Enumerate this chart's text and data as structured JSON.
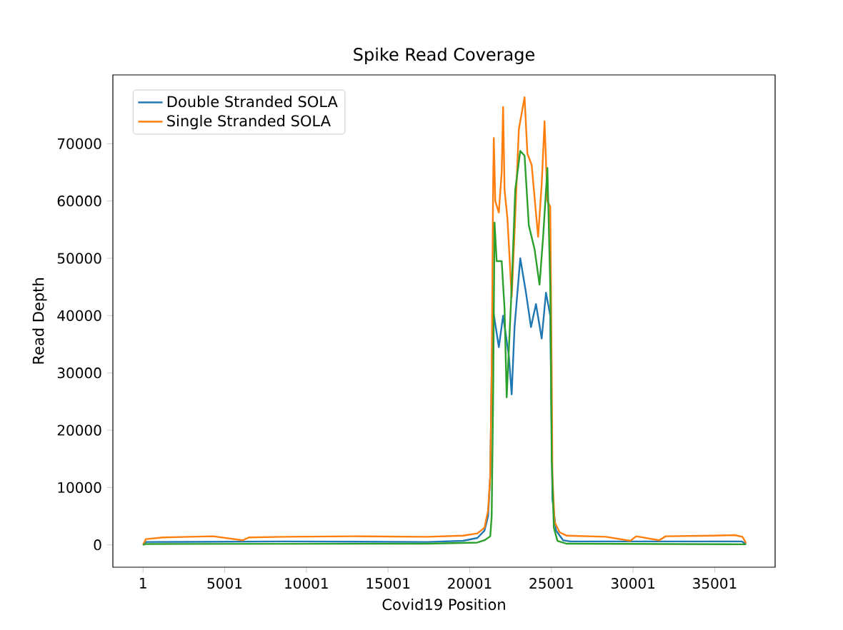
{
  "chart_data": {
    "type": "line",
    "title": "Spike Read Coverage",
    "xlabel": "Covid19 Position",
    "ylabel": "Read Depth",
    "xlim": [
      -1845,
      38700
    ],
    "ylim": [
      -3900,
      82000
    ],
    "xticks": [
      1,
      5001,
      10001,
      15001,
      20001,
      25001,
      30001,
      35001
    ],
    "yticks": [
      0,
      10000,
      20000,
      30000,
      40000,
      50000,
      60000,
      70000
    ],
    "grid": false,
    "legend": "top left",
    "marker": "none",
    "line_style": "solid",
    "series": [
      {
        "name": "Double Stranded SOLA",
        "color": "#1f77b4",
        "x": [
          1,
          176,
          8661,
          17410,
          19596,
          20471,
          20908,
          21127,
          21258,
          21346,
          21433,
          21784,
          22046,
          22396,
          22571,
          22746,
          23096,
          23446,
          23752,
          24058,
          24408,
          24671,
          24933,
          25021,
          25065,
          25284,
          25721,
          26159,
          36656,
          36918
        ],
        "values": [
          0,
          500,
          600,
          500,
          700,
          1200,
          2500,
          5000,
          12000,
          30000,
          41000,
          34500,
          40000,
          33000,
          26250,
          38000,
          50000,
          44000,
          38000,
          42000,
          36000,
          44000,
          40000,
          20000,
          8000,
          2500,
          800,
          600,
          600,
          100
        ]
      },
      {
        "name": "Single Stranded SOLA",
        "color": "#ff7f0e",
        "x": [
          1,
          176,
          1226,
          4288,
          6100,
          6500,
          8661,
          13035,
          17410,
          19596,
          20471,
          20908,
          21127,
          21258,
          21346,
          21433,
          21477,
          21565,
          21784,
          21959,
          22046,
          22134,
          22309,
          22571,
          22746,
          23009,
          23359,
          23534,
          23796,
          24058,
          24190,
          24408,
          24583,
          24758,
          24933,
          25021,
          25065,
          25196,
          25502,
          25940,
          28346,
          29831,
          30200,
          31600,
          32000,
          34907,
          36219,
          36700,
          36918
        ],
        "values": [
          0,
          1000,
          1300,
          1500,
          800,
          1300,
          1400,
          1500,
          1400,
          1600,
          2000,
          3000,
          6000,
          12000,
          30000,
          62000,
          71000,
          60000,
          58000,
          65000,
          76400,
          62000,
          57000,
          43250,
          54500,
          72500,
          78100,
          68250,
          66250,
          57900,
          53750,
          62900,
          73900,
          60000,
          59000,
          30000,
          12000,
          4000,
          2200,
          1600,
          1400,
          700,
          1500,
          800,
          1500,
          1600,
          1700,
          1400,
          300
        ]
      },
      {
        "color": "#2ca02c",
        "x": [
          1,
          176,
          17410,
          20471,
          20908,
          21258,
          21346,
          21433,
          21521,
          21652,
          21959,
          22134,
          22265,
          22571,
          22790,
          23096,
          23359,
          23621,
          23971,
          24277,
          24496,
          24758,
          24933,
          25021,
          25152,
          25371,
          25940,
          36918
        ],
        "values": [
          0,
          150,
          200,
          400,
          800,
          1500,
          5000,
          25000,
          56250,
          49500,
          49500,
          41250,
          25750,
          45000,
          62000,
          68750,
          67900,
          55750,
          51600,
          45400,
          53750,
          65750,
          45000,
          15000,
          3000,
          700,
          200,
          100
        ]
      }
    ]
  }
}
